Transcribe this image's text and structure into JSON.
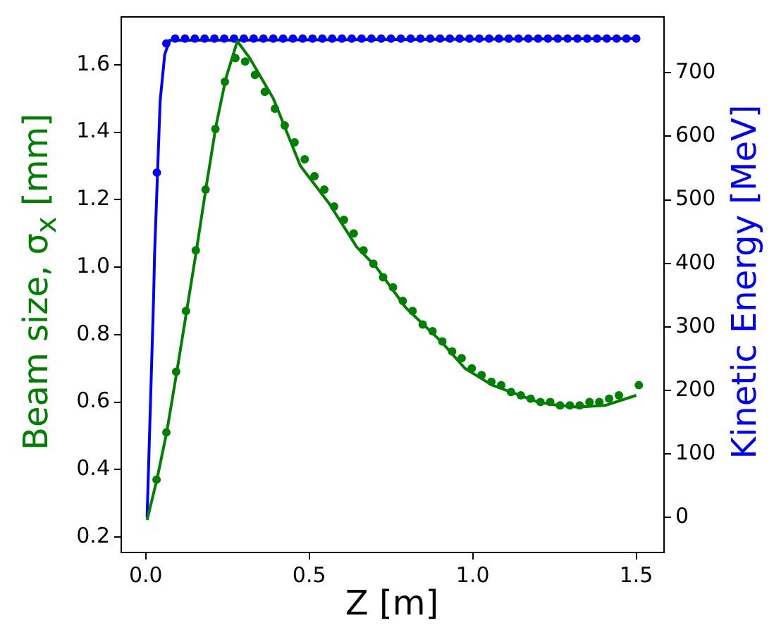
{
  "chart_data": {
    "type": "line",
    "xlabel": "Z [m]",
    "ylabel": "Beam size, σ$_{x}$ [mm]",
    "y2label": "Kinetic Energy [MeV]",
    "xlim": [
      -0.075,
      1.585
    ],
    "xticks": [
      {
        "value": 0,
        "label": "0.0"
      },
      0.5,
      {
        "value": 1,
        "label": "1.0"
      },
      1.5
    ],
    "ylim": [
      0.154,
      1.742
    ],
    "yticks": [
      0.2,
      0.4,
      0.6,
      0.8,
      {
        "value": 1,
        "label": "1.0"
      },
      1.2,
      1.4,
      1.6
    ],
    "y2lim": [
      -55,
      788
    ],
    "y2ticks": [
      0,
      100,
      200,
      300,
      400,
      500,
      600,
      700
    ],
    "grid": false,
    "legend": false,
    "series": [
      {
        "marker": "none",
        "color": "#008000",
        "x": [
          0.004,
          0.034,
          0.064,
          0.095,
          0.125,
          0.155,
          0.185,
          0.215,
          0.245,
          0.28,
          0.318,
          0.39,
          0.473,
          0.56,
          0.645,
          0.705,
          0.795,
          0.903,
          0.976,
          1.06,
          1.13,
          1.2,
          1.26,
          1.32,
          1.405,
          1.5
        ],
        "values": [
          0.25,
          0.37,
          0.51,
          0.69,
          0.87,
          1.05,
          1.24,
          1.42,
          1.56,
          1.67,
          1.62,
          1.5,
          1.3,
          1.19,
          1.06,
          1.0,
          0.88,
          0.78,
          0.7,
          0.65,
          0.625,
          0.6,
          0.59,
          0.585,
          0.59,
          0.62
        ]
      },
      {
        "type": "scatter",
        "marker": "circle",
        "color": "#008000",
        "x": [
          0.033,
          0.063,
          0.093,
          0.123,
          0.153,
          0.183,
          0.213,
          0.242,
          0.274,
          0.304,
          0.334,
          0.364,
          0.395,
          0.425,
          0.455,
          0.486,
          0.516,
          0.546,
          0.576,
          0.606,
          0.636,
          0.666,
          0.696,
          0.726,
          0.756,
          0.786,
          0.816,
          0.847,
          0.877,
          0.907,
          0.937,
          0.966,
          0.997,
          1.027,
          1.057,
          1.087,
          1.117,
          1.147,
          1.177,
          1.207,
          1.237,
          1.267,
          1.297,
          1.327,
          1.357,
          1.387,
          1.417,
          1.447,
          1.508
        ],
        "values": [
          0.37,
          0.51,
          0.69,
          0.87,
          1.05,
          1.23,
          1.41,
          1.55,
          1.62,
          1.61,
          1.57,
          1.52,
          1.47,
          1.42,
          1.37,
          1.32,
          1.27,
          1.23,
          1.18,
          1.14,
          1.1,
          1.05,
          1.01,
          0.97,
          0.94,
          0.9,
          0.87,
          0.83,
          0.81,
          0.78,
          0.75,
          0.73,
          0.7,
          0.68,
          0.66,
          0.65,
          0.63,
          0.62,
          0.61,
          0.6,
          0.6,
          0.59,
          0.59,
          0.59,
          0.6,
          0.6,
          0.61,
          0.62,
          0.65
        ]
      },
      {
        "marker": "none",
        "axis": "y2",
        "color": "#0000ff",
        "x": [
          0.004,
          0.024,
          0.027,
          0.044,
          0.058,
          0.073,
          1.5
        ],
        "values": [
          0,
          347,
          415,
          656,
          729,
          751,
          754
        ]
      },
      {
        "type": "scatter",
        "marker": "circle",
        "axis": "y2",
        "color": "#0000ff",
        "x": [
          0.034,
          0.063,
          0.09,
          0.12,
          0.15,
          0.18,
          0.21,
          0.24,
          0.27,
          0.3,
          0.33,
          0.36,
          0.39,
          0.42,
          0.45,
          0.48,
          0.51,
          0.54,
          0.57,
          0.6,
          0.63,
          0.66,
          0.69,
          0.72,
          0.75,
          0.78,
          0.81,
          0.84,
          0.87,
          0.9,
          0.93,
          0.96,
          0.99,
          1.02,
          1.05,
          1.08,
          1.11,
          1.14,
          1.17,
          1.2,
          1.23,
          1.26,
          1.29,
          1.32,
          1.35,
          1.38,
          1.41,
          1.44,
          1.47,
          1.5
        ],
        "values": [
          543,
          746,
          754,
          754,
          754,
          754,
          754,
          754,
          754,
          754,
          754,
          754,
          754,
          754,
          754,
          754,
          754,
          754,
          754,
          754,
          754,
          754,
          754,
          754,
          754,
          754,
          754,
          754,
          754,
          754,
          754,
          754,
          754,
          754,
          754,
          754,
          754,
          754,
          754,
          754,
          754,
          754,
          754,
          754,
          754,
          754,
          754,
          754,
          754,
          754
        ]
      }
    ]
  }
}
